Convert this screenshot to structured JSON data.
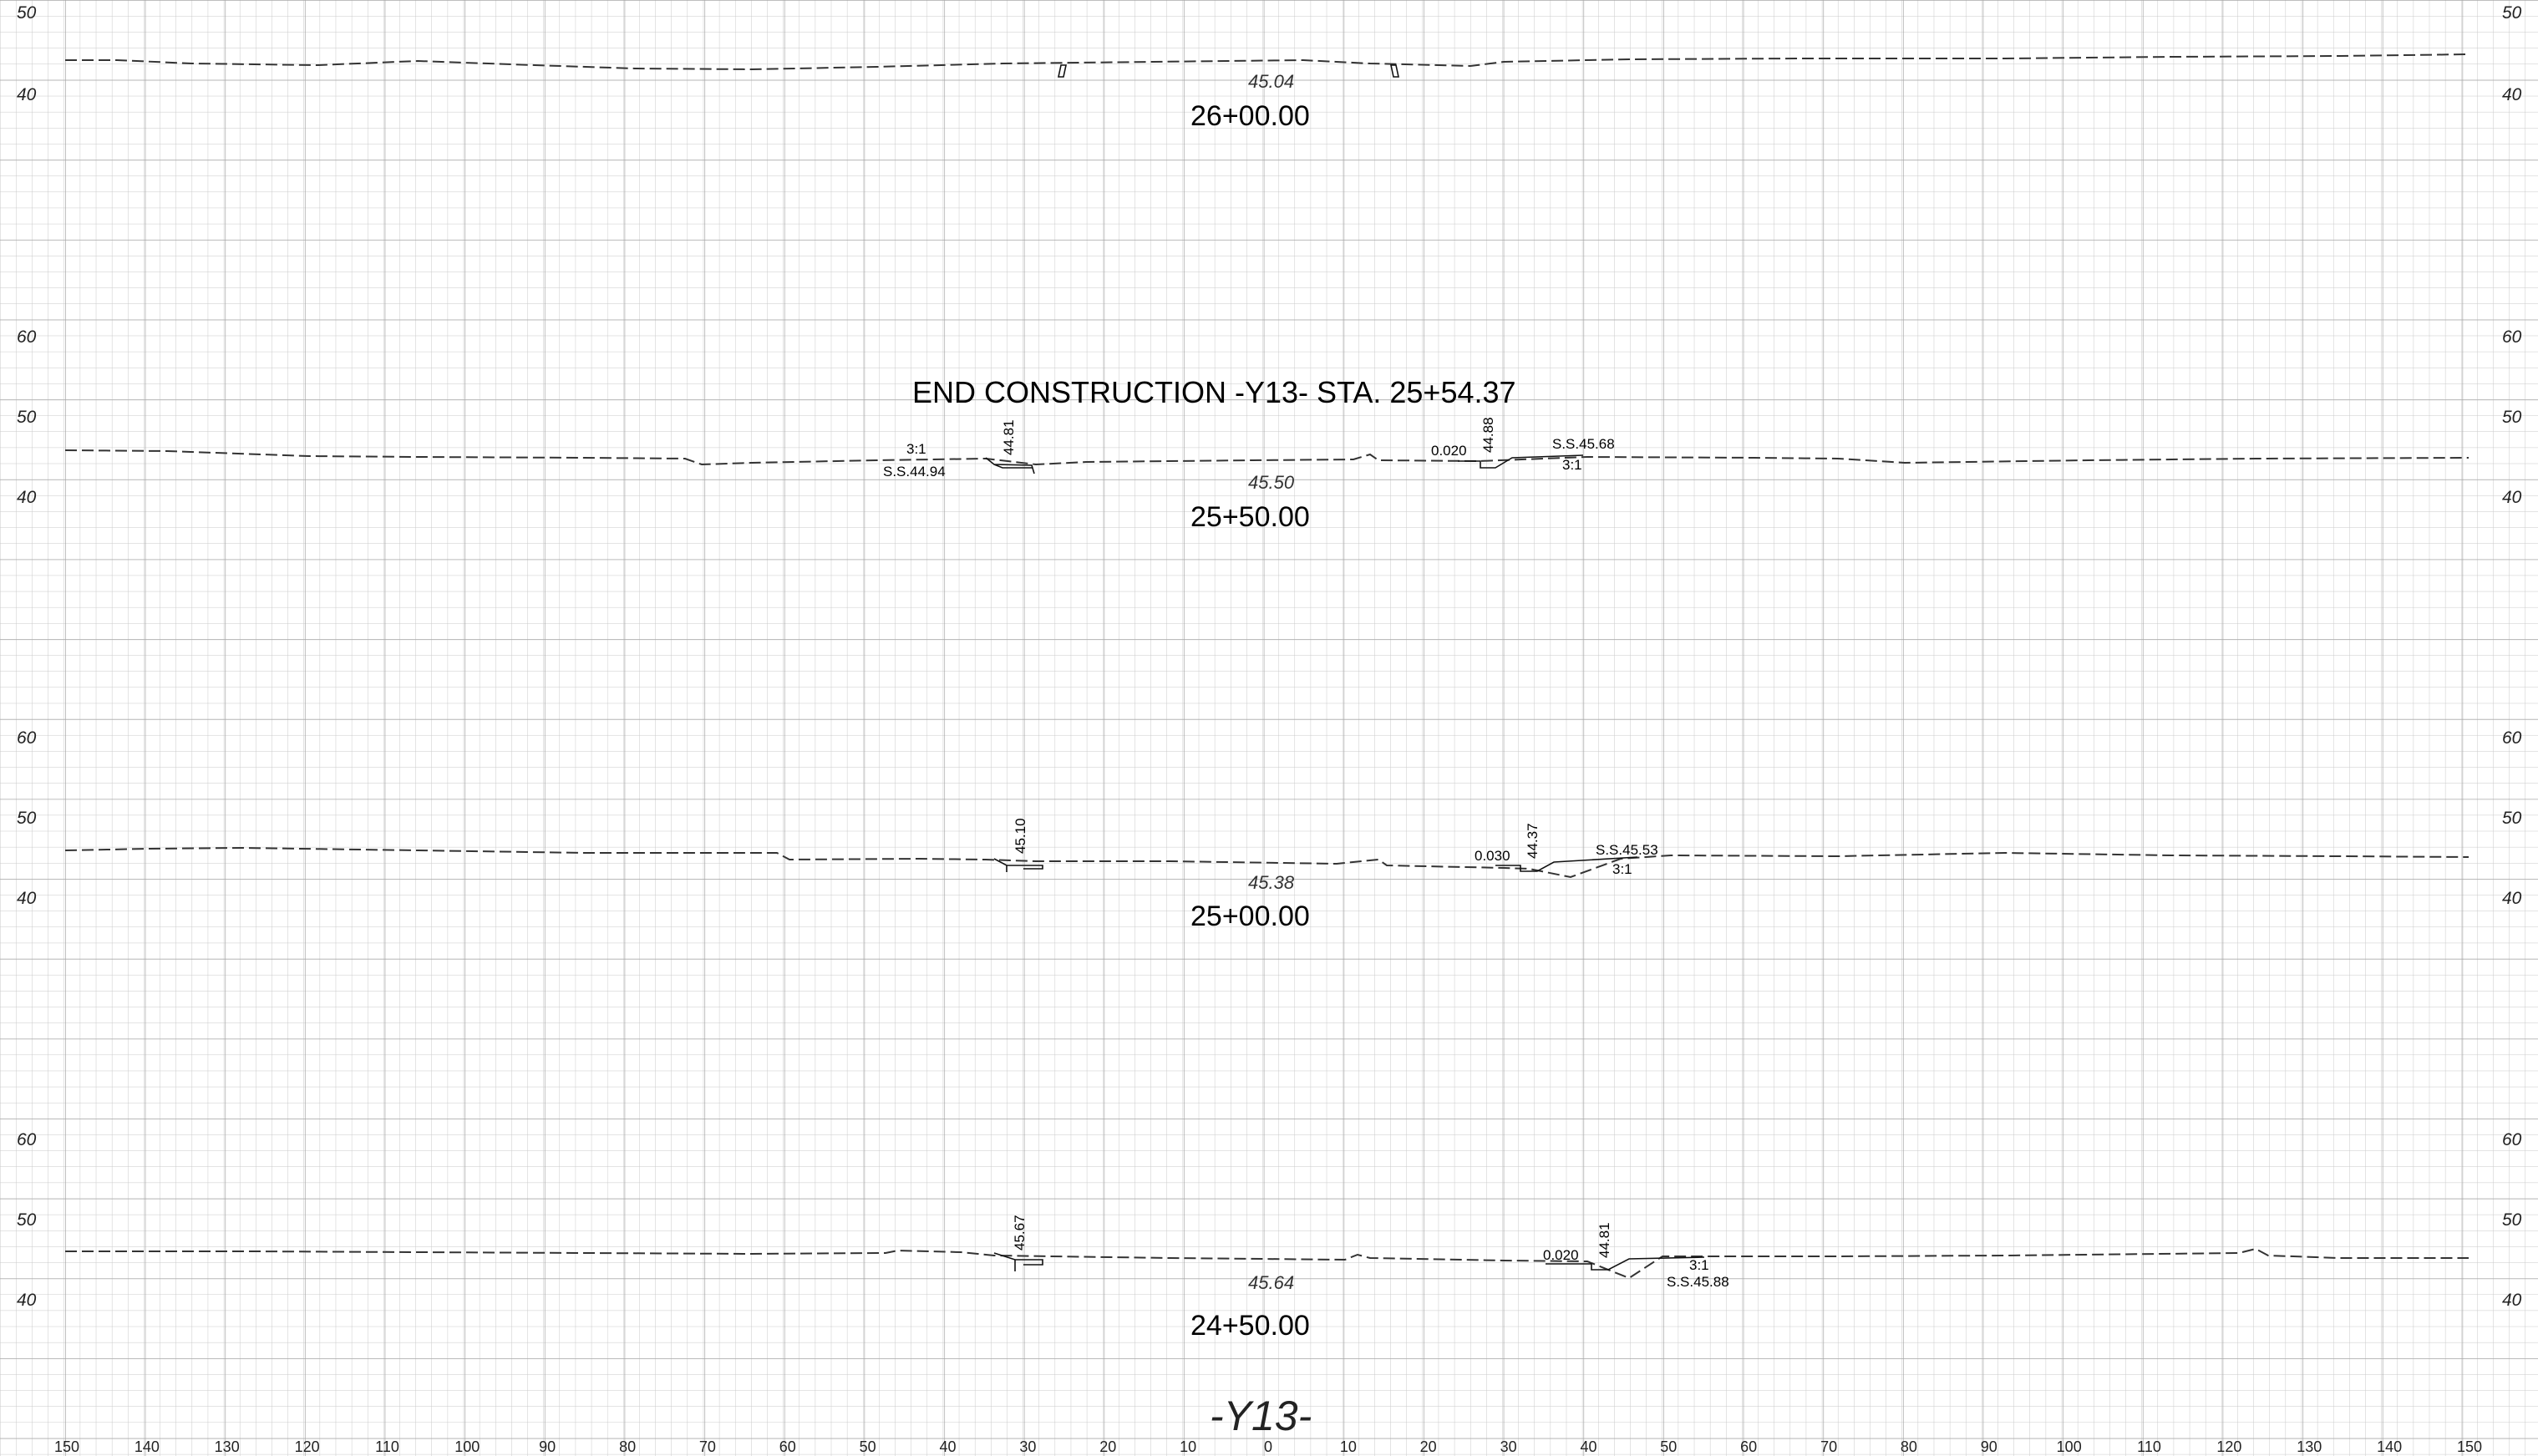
{
  "title": "END  CONSTRUCTION  -Y13-  STA. 25+54.37",
  "alignment_label": "-Y13-",
  "offset_axis": {
    "ticks": [
      "150",
      "140",
      "130",
      "120",
      "110",
      "100",
      "90",
      "80",
      "70",
      "60",
      "50",
      "40",
      "30",
      "20",
      "10",
      "0",
      "10",
      "20",
      "30",
      "40",
      "50",
      "60",
      "70",
      "80",
      "90",
      "100",
      "110",
      "120",
      "130",
      "140",
      "150"
    ]
  },
  "sections": [
    {
      "station": "26+00.00",
      "centerline_elev": "45.04",
      "elev_ticks": [
        "50",
        "40"
      ],
      "notes": []
    },
    {
      "station": "25+50.00",
      "centerline_elev": "45.50",
      "elev_ticks": [
        "60",
        "50",
        "40"
      ],
      "notes": [
        {
          "id": "left-slope",
          "text": "3:1"
        },
        {
          "id": "left-ss",
          "text": "S.S.44.94"
        },
        {
          "id": "left-edge",
          "text": "44.81"
        },
        {
          "id": "right-grade",
          "text": "0.020"
        },
        {
          "id": "right-edge",
          "text": "44.88"
        },
        {
          "id": "right-ss",
          "text": "S.S.45.68"
        },
        {
          "id": "right-slope",
          "text": "3:1"
        }
      ]
    },
    {
      "station": "25+00.00",
      "centerline_elev": "45.38",
      "elev_ticks": [
        "60",
        "50",
        "40"
      ],
      "notes": [
        {
          "id": "left-edge",
          "text": "45.10"
        },
        {
          "id": "right-grade",
          "text": "0.030"
        },
        {
          "id": "right-edge",
          "text": "44.37"
        },
        {
          "id": "right-ss",
          "text": "S.S.45.53"
        },
        {
          "id": "right-slope",
          "text": "3:1"
        }
      ]
    },
    {
      "station": "24+50.00",
      "centerline_elev": "45.64",
      "elev_ticks": [
        "60",
        "50",
        "40"
      ],
      "notes": [
        {
          "id": "left-edge",
          "text": "45.67"
        },
        {
          "id": "right-grade",
          "text": "0.020"
        },
        {
          "id": "right-edge",
          "text": "44.81"
        },
        {
          "id": "right-slope",
          "text": "3:1"
        },
        {
          "id": "right-ss",
          "text": "S.S.45.88"
        }
      ]
    }
  ]
}
